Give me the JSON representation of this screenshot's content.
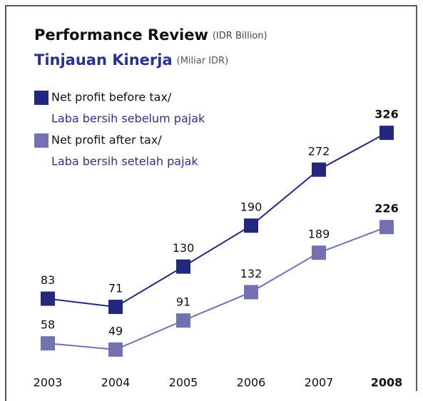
{
  "chart_data": {
    "type": "line",
    "title": "Performance Review",
    "title_unit": "(IDR Billion)",
    "subtitle": "Tinjauan Kinerja",
    "subtitle_unit": "(Miliar IDR)",
    "categories": [
      "2003",
      "2004",
      "2005",
      "2006",
      "2007",
      "2008"
    ],
    "ylim": [
      -23,
      416
    ],
    "y2lim": [
      18,
      451
    ],
    "series": [
      {
        "name": "Net profit before tax/",
        "name_local": "Laba bersih sebelum pajak",
        "color": "#23287f",
        "values": [
          83,
          71,
          130,
          190,
          272,
          326
        ]
      },
      {
        "name": "Net profit after tax/",
        "name_local": "Laba bersih setelah pajak",
        "color": "#7371b1",
        "axis": "y2",
        "values": [
          58,
          49,
          91,
          132,
          189,
          226
        ]
      }
    ]
  }
}
